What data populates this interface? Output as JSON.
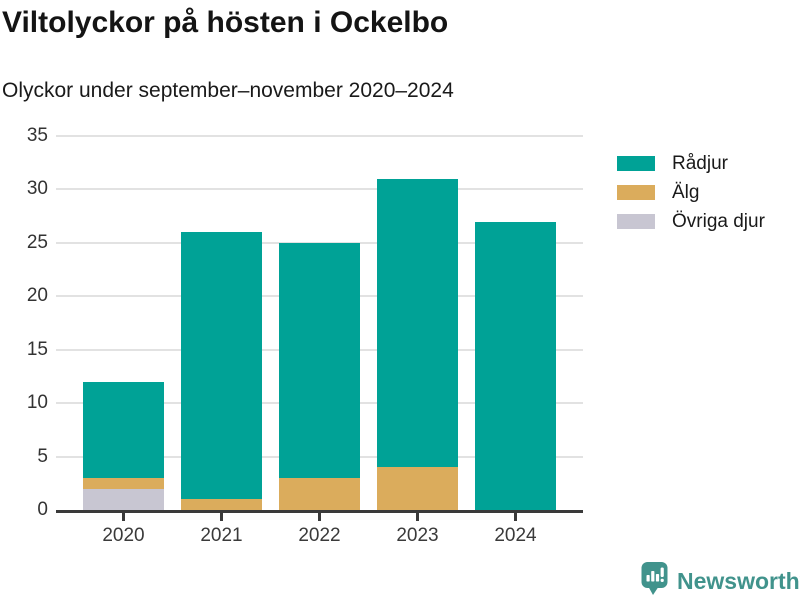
{
  "header": {
    "title": "Viltolyckor på hösten i Ockelbo",
    "subtitle": "Olyckor under september–november 2020–2024"
  },
  "chart_data": {
    "type": "bar",
    "stacked": true,
    "title": "Viltolyckor på hösten i Ockelbo",
    "subtitle": "Olyckor under september–november 2020–2024",
    "categories": [
      "2020",
      "2021",
      "2022",
      "2023",
      "2024"
    ],
    "series": [
      {
        "name": "Rådjur",
        "color": "#00A296",
        "values": [
          9,
          25,
          22,
          27,
          27
        ]
      },
      {
        "name": "Älg",
        "color": "#DBAC5C",
        "values": [
          1,
          1,
          3,
          4,
          0
        ]
      },
      {
        "name": "Övriga djur",
        "color": "#C8C6D2",
        "values": [
          2,
          0,
          0,
          0,
          0
        ]
      }
    ],
    "stack_order_bottom_to_top": [
      "Övriga djur",
      "Älg",
      "Rådjur"
    ],
    "totals": [
      12,
      26,
      25,
      31,
      27
    ],
    "xlabel": "",
    "ylabel": "",
    "ylim": [
      0,
      35
    ],
    "yticks": [
      0,
      5,
      10,
      15,
      20,
      25,
      30,
      35
    ],
    "grid": true,
    "legend_position": "top-right",
    "axis_color": "#3A3A3A",
    "grid_color": "#E2E2E2",
    "tick_label_color": "#333333"
  },
  "footer": {
    "brand": "Newsworthy",
    "icon": "newsworthy-speech-bubble-chart-icon",
    "brand_color": "#41938C"
  }
}
